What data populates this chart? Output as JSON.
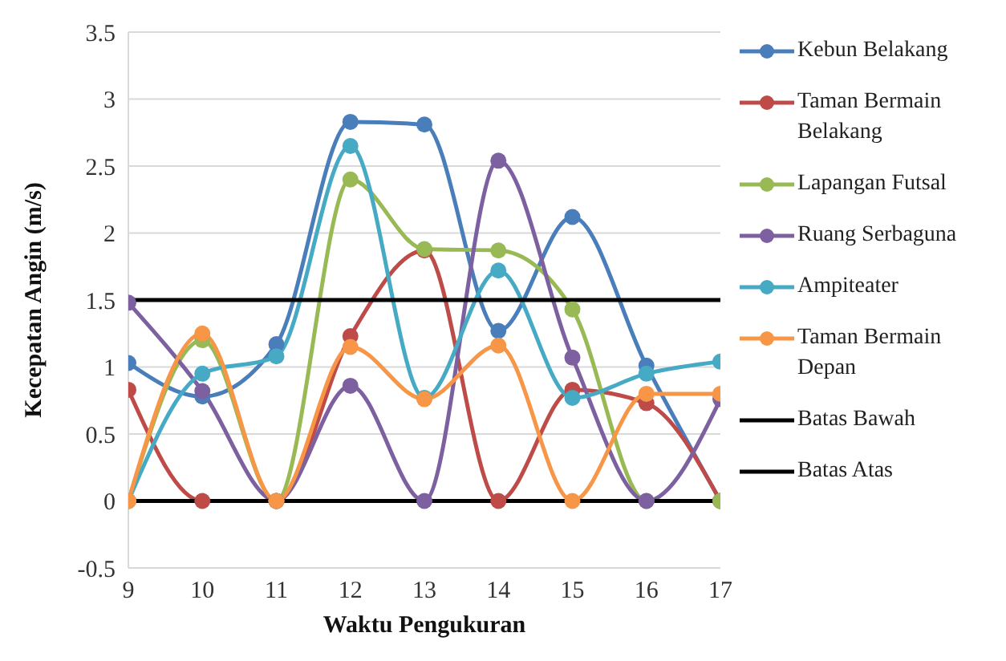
{
  "chart_data": {
    "type": "line",
    "xlabel": "Waktu Pengukuran",
    "ylabel": "Kecepatan Angin (m/s)",
    "x": [
      9,
      10,
      11,
      12,
      13,
      14,
      15,
      16,
      17
    ],
    "xlim": [
      9,
      17
    ],
    "xticks": [
      9,
      10,
      11,
      12,
      13,
      14,
      15,
      16,
      17
    ],
    "ylim": [
      -0.5,
      3.5
    ],
    "yticks": [
      -0.5,
      0,
      0.5,
      1,
      1.5,
      2,
      2.5,
      3,
      3.5
    ],
    "grid": "y",
    "legend": "right",
    "marker": "circle",
    "line_style": "solid",
    "series": [
      {
        "name": "Kebun Belakang",
        "color": "#4a7ebb",
        "values": [
          1.03,
          0.78,
          1.17,
          2.83,
          2.81,
          1.27,
          2.12,
          1.01,
          0
        ]
      },
      {
        "name": "Taman Bermain Belakang",
        "color": "#be4b48",
        "values": [
          0.83,
          0,
          0,
          1.23,
          1.87,
          0,
          0.83,
          0.73,
          0
        ]
      },
      {
        "name": "Lapangan Futsal",
        "color": "#98b954",
        "values": [
          0,
          1.2,
          0,
          2.4,
          1.88,
          1.87,
          1.43,
          0,
          0
        ]
      },
      {
        "name": "Ruang Serbaguna",
        "color": "#7d60a0",
        "values": [
          1.48,
          0.82,
          0,
          0.86,
          0,
          2.54,
          1.07,
          0,
          0.76
        ]
      },
      {
        "name": "Ampiteater",
        "color": "#46aac5",
        "values": [
          0,
          0.95,
          1.08,
          2.65,
          0.77,
          1.72,
          0.77,
          0.95,
          1.04
        ]
      },
      {
        "name": "Taman Bermain Depan",
        "color": "#f79646",
        "values": [
          0,
          1.25,
          0,
          1.15,
          0.76,
          1.16,
          0,
          0.8,
          0.8
        ]
      },
      {
        "name": "Batas Bawah",
        "color": "#000000",
        "marker": "none",
        "values": [
          0,
          0,
          0,
          0,
          0,
          0,
          0,
          0,
          0
        ]
      },
      {
        "name": "Batas Atas",
        "color": "#000000",
        "marker": "none",
        "values": [
          1.5,
          1.5,
          1.5,
          1.5,
          1.5,
          1.5,
          1.5,
          1.5,
          1.5
        ]
      }
    ]
  }
}
